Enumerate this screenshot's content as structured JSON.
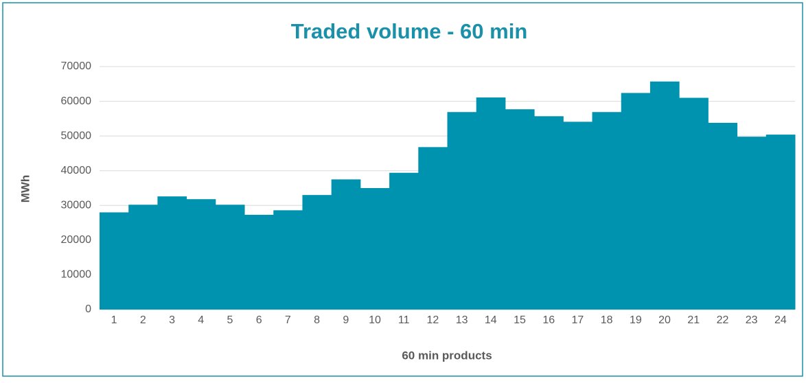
{
  "chart_data": {
    "type": "bar",
    "title": "Traded volume - 60 min",
    "x_label": "60 min products",
    "y_label": "MWh",
    "categories": [
      "1",
      "2",
      "3",
      "4",
      "5",
      "6",
      "7",
      "8",
      "9",
      "10",
      "11",
      "12",
      "13",
      "14",
      "15",
      "16",
      "17",
      "18",
      "19",
      "20",
      "21",
      "22",
      "23",
      "24"
    ],
    "values": [
      28000,
      30200,
      32600,
      31800,
      30200,
      27300,
      28600,
      33000,
      37500,
      35000,
      39400,
      46800,
      56900,
      61100,
      57700,
      55700,
      54100,
      56900,
      62400,
      65700,
      61000,
      53800,
      49800,
      50400
    ],
    "color": "#0093b0",
    "ylim": [
      0,
      70000
    ],
    "yticks": [
      0,
      10000,
      20000,
      30000,
      40000,
      50000,
      60000,
      70000
    ],
    "grid": true
  }
}
